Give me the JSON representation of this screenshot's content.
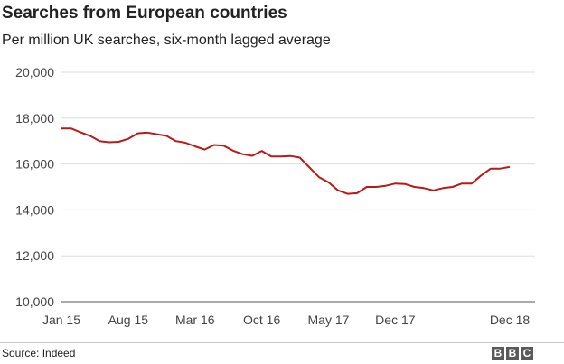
{
  "chart_data": {
    "type": "line",
    "title": "Searches from European countries",
    "subtitle": "Per million UK searches, six-month lagged average",
    "xlabel": "",
    "ylabel": "",
    "ylim": [
      10000,
      20000
    ],
    "yticks": [
      "20,000",
      "18,000",
      "16,000",
      "14,000",
      "12,000",
      "10,000"
    ],
    "ytick_values": [
      20000,
      18000,
      16000,
      14000,
      12000,
      10000
    ],
    "xticks": [
      "Jan 15",
      "Aug 15",
      "Mar 16",
      "Oct 16",
      "May 17",
      "Dec 17",
      "Dec 18"
    ],
    "xtick_positions": [
      "2015-01",
      "2015-08",
      "2016-03",
      "2016-10",
      "2017-05",
      "2017-12",
      "2018-12"
    ],
    "grid": "horizontal",
    "line_color": "#bb1919",
    "series": [
      {
        "x": [
          "2015-01",
          "2015-02",
          "2015-03",
          "2015-04",
          "2015-05",
          "2015-06",
          "2015-07",
          "2015-08",
          "2015-09",
          "2015-10",
          "2015-11",
          "2015-12",
          "2016-01",
          "2016-02",
          "2016-03",
          "2016-04",
          "2016-05",
          "2016-06",
          "2016-07",
          "2016-08",
          "2016-09",
          "2016-10",
          "2016-11",
          "2016-12",
          "2017-01",
          "2017-02",
          "2017-03",
          "2017-04",
          "2017-05",
          "2017-06",
          "2017-07",
          "2017-08",
          "2017-09",
          "2017-10",
          "2017-11",
          "2017-12",
          "2018-01",
          "2018-02",
          "2018-03",
          "2018-04",
          "2018-05",
          "2018-06",
          "2018-07",
          "2018-08",
          "2018-09",
          "2018-10",
          "2018-11",
          "2018-12"
        ],
        "values": [
          17550,
          17550,
          17380,
          17230,
          17000,
          16950,
          16970,
          17100,
          17340,
          17370,
          17300,
          17230,
          17000,
          16930,
          16770,
          16630,
          16830,
          16800,
          16580,
          16430,
          16360,
          16570,
          16330,
          16330,
          16350,
          16280,
          15850,
          15430,
          15200,
          14850,
          14700,
          14730,
          15000,
          15000,
          15050,
          15150,
          15130,
          15000,
          14950,
          14850,
          14950,
          15000,
          15150,
          15150,
          15500,
          15800,
          15800,
          15870
        ]
      }
    ]
  },
  "footer": {
    "source": "Source: Indeed",
    "logo": [
      "B",
      "B",
      "C"
    ]
  }
}
